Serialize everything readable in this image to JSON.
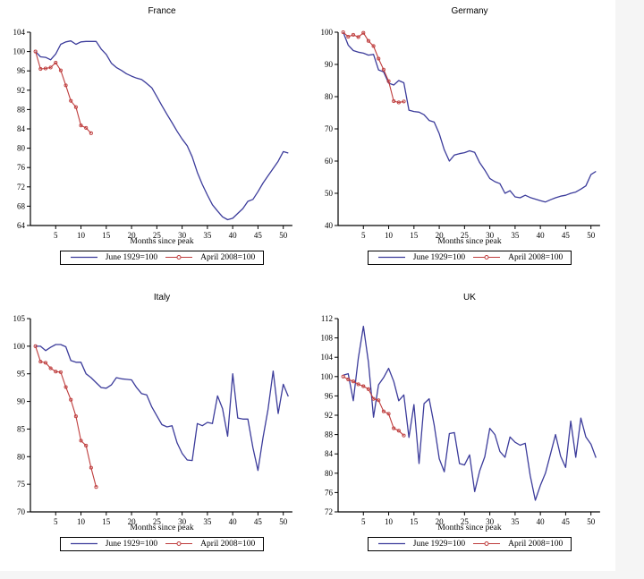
{
  "page": {
    "background": "#f5f5f5",
    "figure_background": "#ffffff"
  },
  "colors": {
    "blue": "#3c3c9b",
    "red": "#be3c3c",
    "axis": "#000000"
  },
  "legend_labels": {
    "series1": "June 1929=100",
    "series2": "April 2008=100"
  },
  "chart_data": [
    {
      "type": "line",
      "title": "France",
      "xlabel": "Months since peak",
      "legend": [
        "June 1929=100",
        "April 2008=100"
      ],
      "legend_position": "bottom",
      "grid": false,
      "xlim": [
        0,
        52
      ],
      "xticks": [
        5,
        10,
        15,
        20,
        25,
        30,
        35,
        40,
        45,
        50
      ],
      "ylim": [
        64,
        104
      ],
      "yticks": [
        64,
        68,
        72,
        76,
        80,
        84,
        88,
        92,
        96,
        100,
        104
      ],
      "series": [
        {
          "name": "June 1929=100",
          "color": "blue",
          "marker": "none",
          "x_start": 1,
          "values": [
            100,
            98.9,
            98.8,
            98.3,
            99.5,
            101.5,
            102,
            102.2,
            101.5,
            102,
            102.1,
            102.1,
            102.1,
            100.5,
            99.4,
            97.6,
            96.7,
            96.1,
            95.4,
            94.9,
            94.5,
            94.2,
            93.4,
            92.5,
            90.7,
            88.8,
            87,
            85.3,
            83.5,
            81.9,
            80.5,
            78.2,
            75,
            72.5,
            70.3,
            68.3,
            67,
            65.8,
            65.2,
            65.5,
            66.5,
            67.5,
            69,
            69.4,
            71,
            72.8,
            74.3,
            75.8,
            77.3,
            79.3,
            79
          ]
        },
        {
          "name": "April 2008=100",
          "color": "red",
          "marker": "circle",
          "x_start": 1,
          "values": [
            100,
            96.4,
            96.5,
            96.7,
            97.7,
            96.1,
            93,
            89.8,
            88.5,
            84.7,
            84.2,
            83.1
          ]
        }
      ]
    },
    {
      "type": "line",
      "title": "Germany",
      "xlabel": "Months since peak",
      "legend": [
        "June 1929=100",
        "April 2008=100"
      ],
      "legend_position": "bottom",
      "grid": false,
      "xlim": [
        0,
        52
      ],
      "xticks": [
        5,
        10,
        15,
        20,
        25,
        30,
        35,
        40,
        45,
        50
      ],
      "ylim": [
        40,
        100
      ],
      "yticks": [
        40,
        50,
        60,
        70,
        80,
        90,
        100
      ],
      "series": [
        {
          "name": "June 1929=100",
          "color": "blue",
          "marker": "none",
          "x_start": 1,
          "values": [
            100,
            96,
            94.3,
            93.8,
            93.5,
            92.9,
            93.1,
            88.3,
            87.7,
            84.2,
            83.6,
            85,
            84.3,
            75.8,
            75.4,
            75.2,
            74.4,
            72.6,
            72.1,
            68.5,
            63.5,
            60,
            61.9,
            62.3,
            62.6,
            63.2,
            62.7,
            59.5,
            57.2,
            54.6,
            53.6,
            53,
            50,
            50.8,
            48.9,
            48.6,
            49.4,
            48.7,
            48.2,
            47.7,
            47.3,
            48,
            48.6,
            49.1,
            49.4,
            50,
            50.4,
            51.3,
            52.3,
            55.8,
            56.8
          ]
        },
        {
          "name": "April 2008=100",
          "color": "red",
          "marker": "circle",
          "x_start": 1,
          "values": [
            100,
            98.6,
            99.2,
            98.5,
            99.8,
            97.3,
            95.7,
            91.8,
            88.4,
            84.8,
            78.6,
            78.2,
            78.5
          ]
        }
      ]
    },
    {
      "type": "line",
      "title": "Italy",
      "xlabel": "Months since peak",
      "legend": [
        "June 1929=100",
        "April 2008=100"
      ],
      "legend_position": "bottom",
      "grid": false,
      "xlim": [
        0,
        52
      ],
      "xticks": [
        5,
        10,
        15,
        20,
        25,
        30,
        35,
        40,
        45,
        50
      ],
      "ylim": [
        70,
        105
      ],
      "yticks": [
        70,
        75,
        80,
        85,
        90,
        95,
        100,
        105
      ],
      "series": [
        {
          "name": "June 1929=100",
          "color": "blue",
          "marker": "none",
          "x_start": 1,
          "values": [
            100,
            100,
            99.2,
            99.8,
            100.3,
            100.3,
            99.9,
            97.4,
            97.1,
            97.1,
            95,
            94.3,
            93.4,
            92.5,
            92.4,
            93,
            94.3,
            94.1,
            94,
            93.9,
            92.5,
            91.4,
            91.2,
            89,
            87.4,
            85.8,
            85.4,
            85.6,
            82.5,
            80.6,
            79.4,
            79.3,
            86,
            85.6,
            86.2,
            86,
            91,
            88.7,
            83.7,
            95,
            87,
            86.8,
            86.8,
            81.6,
            77.5,
            83.5,
            88.6,
            95.5,
            87.8,
            93.1,
            90.9
          ]
        },
        {
          "name": "April 2008=100",
          "color": "red",
          "marker": "circle",
          "x_start": 1,
          "values": [
            100,
            97.2,
            97,
            96,
            95.4,
            95.3,
            92.6,
            90.3,
            87.3,
            82.9,
            82,
            78,
            74.5
          ]
        }
      ]
    },
    {
      "type": "line",
      "title": "UK",
      "xlabel": "Months since peak",
      "legend": [
        "June 1929=100",
        "April 2008=100"
      ],
      "legend_position": "bottom",
      "grid": false,
      "xlim": [
        0,
        52
      ],
      "xticks": [
        5,
        10,
        15,
        20,
        25,
        30,
        35,
        40,
        45,
        50
      ],
      "ylim": [
        72,
        112
      ],
      "yticks": [
        72,
        76,
        80,
        84,
        88,
        92,
        96,
        100,
        104,
        108,
        112
      ],
      "series": [
        {
          "name": "June 1929=100",
          "color": "blue",
          "marker": "none",
          "x_start": 1,
          "values": [
            100.3,
            100.6,
            95,
            103.8,
            110.4,
            103,
            91.6,
            98.3,
            99.8,
            101.7,
            99,
            95,
            96.2,
            87.4,
            94.2,
            82,
            94.4,
            95.4,
            90,
            83,
            80.3,
            88.2,
            88.4,
            82,
            81.7,
            83.8,
            76.2,
            80.5,
            83.4,
            89.3,
            88,
            84.5,
            83.3,
            87.5,
            86.4,
            85.8,
            86.2,
            79.5,
            74.4,
            77.5,
            80,
            84,
            88,
            83.5,
            81.2,
            90.8,
            83.3,
            91.4,
            87.5,
            86,
            83.2
          ]
        },
        {
          "name": "April 2008=100",
          "color": "red",
          "marker": "circle",
          "x_start": 1,
          "values": [
            100,
            99.4,
            99,
            98.4,
            98,
            97.4,
            95.4,
            95.1,
            92.8,
            92.3,
            89.3,
            88.8,
            87.8
          ]
        }
      ]
    }
  ]
}
